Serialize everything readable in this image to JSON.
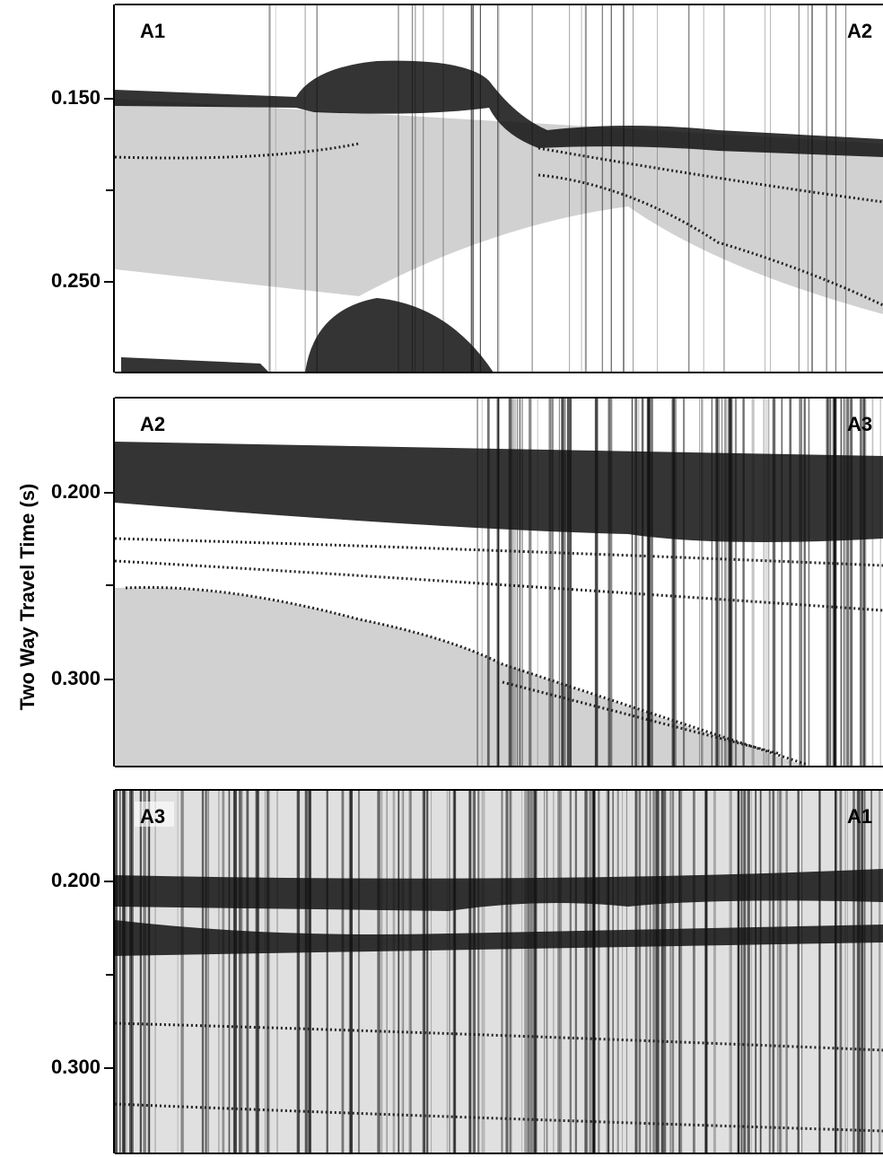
{
  "y_axis_label": "Two Way Travel Time (s)",
  "panels": [
    {
      "left_label": "A1",
      "right_label": "A2",
      "ticks": [
        "0.150",
        "0.250"
      ]
    },
    {
      "left_label": "A2",
      "right_label": "A3",
      "ticks": [
        "0.200",
        "0.300"
      ]
    },
    {
      "left_label": "A3",
      "right_label": "A1",
      "ticks": [
        "0.200",
        "0.300"
      ]
    }
  ]
}
